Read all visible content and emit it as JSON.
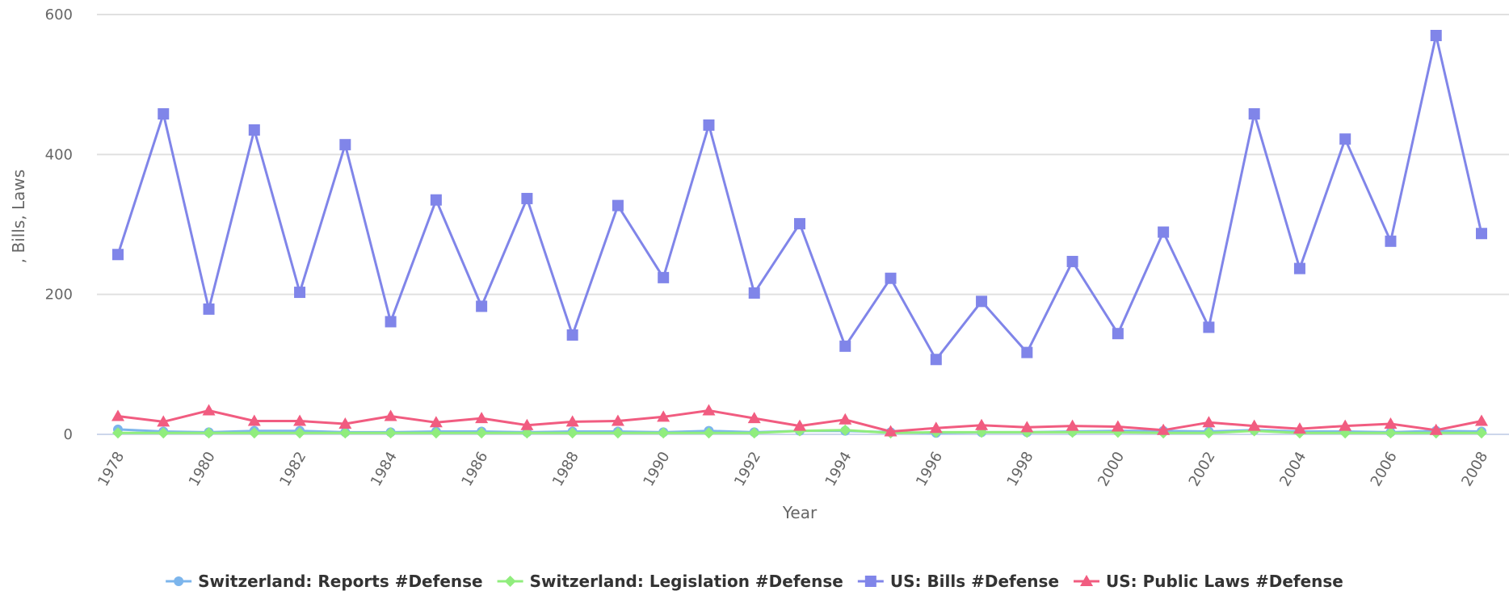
{
  "chart_data": {
    "type": "line",
    "xlabel": "Year",
    "ylabel": ", Bills, Laws",
    "ylim": [
      0,
      600
    ],
    "yticks": [
      0,
      200,
      400,
      600
    ],
    "xticks": [
      1978,
      1980,
      1982,
      1984,
      1986,
      1988,
      1990,
      1992,
      1994,
      1996,
      1998,
      2000,
      2002,
      2004,
      2006,
      2008
    ],
    "grid": true,
    "legend_position": "bottom",
    "x": [
      1978,
      1979,
      1980,
      1981,
      1982,
      1983,
      1984,
      1985,
      1986,
      1987,
      1988,
      1989,
      1990,
      1991,
      1992,
      1993,
      1994,
      1995,
      1996,
      1997,
      1998,
      1999,
      2000,
      2001,
      2002,
      2003,
      2004,
      2005,
      2006,
      2007,
      2008
    ],
    "series": [
      {
        "name": "Switzerland: Reports #Defense",
        "color": "#7cb5ec",
        "marker": "circle",
        "values": [
          7,
          4,
          3,
          5,
          5,
          3,
          3,
          4,
          4,
          3,
          4,
          4,
          3,
          5,
          3,
          5,
          5,
          3,
          2,
          3,
          3,
          4,
          5,
          5,
          4,
          6,
          4,
          4,
          3,
          5,
          4
        ]
      },
      {
        "name": "Switzerland: Legislation #Defense",
        "color": "#90ed7d",
        "marker": "diamond",
        "values": [
          2,
          2,
          2,
          2,
          2,
          2,
          2,
          2,
          2,
          2,
          2,
          2,
          2,
          2,
          2,
          5,
          6,
          2,
          3,
          3,
          3,
          3,
          3,
          2,
          2,
          5,
          2,
          2,
          2,
          2,
          2
        ]
      },
      {
        "name": "US: Bills #Defense",
        "color": "#8085e9",
        "marker": "square",
        "values": [
          257,
          458,
          179,
          435,
          203,
          414,
          161,
          335,
          183,
          337,
          142,
          327,
          224,
          442,
          202,
          301,
          126,
          223,
          107,
          190,
          117,
          247,
          144,
          289,
          153,
          458,
          237,
          422,
          276,
          570,
          287
        ]
      },
      {
        "name": "US: Public Laws #Defense",
        "color": "#f15c80",
        "marker": "triangle",
        "values": [
          26,
          18,
          34,
          19,
          19,
          15,
          26,
          17,
          23,
          13,
          18,
          19,
          25,
          34,
          23,
          12,
          21,
          4,
          9,
          13,
          10,
          12,
          11,
          6,
          17,
          12,
          8,
          12,
          15,
          6,
          19
        ]
      }
    ]
  }
}
